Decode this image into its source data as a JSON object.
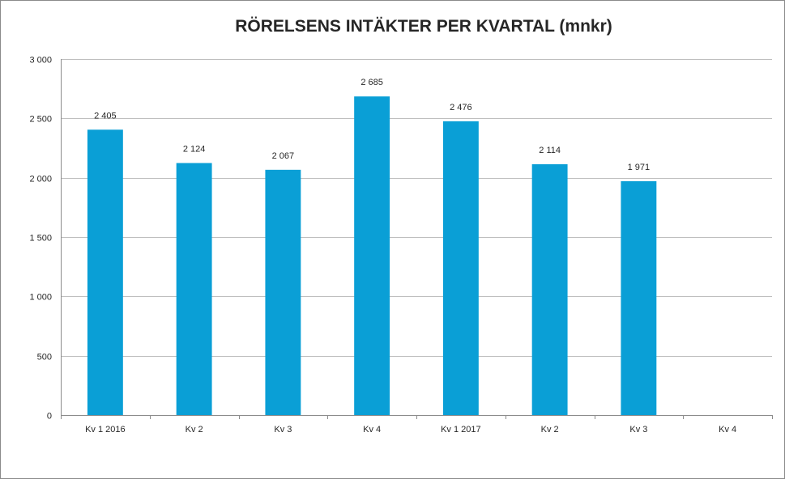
{
  "chart_data": {
    "type": "bar",
    "title": "RÖRELSENS INTÄKTER PER KVARTAL (mnkr)",
    "xlabel": "",
    "ylabel": "",
    "categories": [
      "Kv 1 2016",
      "Kv 2",
      "Kv 3",
      "Kv 4",
      "Kv 1 2017",
      "Kv 2",
      "Kv 3",
      "Kv 4"
    ],
    "values": [
      2405,
      2124,
      2067,
      2685,
      2476,
      2114,
      1971,
      null
    ],
    "data_labels": [
      "2 405",
      "2 124",
      "2 067",
      "2 685",
      "2 476",
      "2 114",
      "1 971",
      ""
    ],
    "ylim": [
      0,
      3000
    ],
    "yticks": [
      0,
      500,
      1000,
      1500,
      2000,
      2500,
      3000
    ],
    "ytick_labels": [
      "0",
      "500",
      "1 000",
      "1 500",
      "2 000",
      "2 500",
      "3 000"
    ],
    "grid": true,
    "bar_color": "#0A9FD6",
    "gridline_color": "#BFBFBF"
  }
}
